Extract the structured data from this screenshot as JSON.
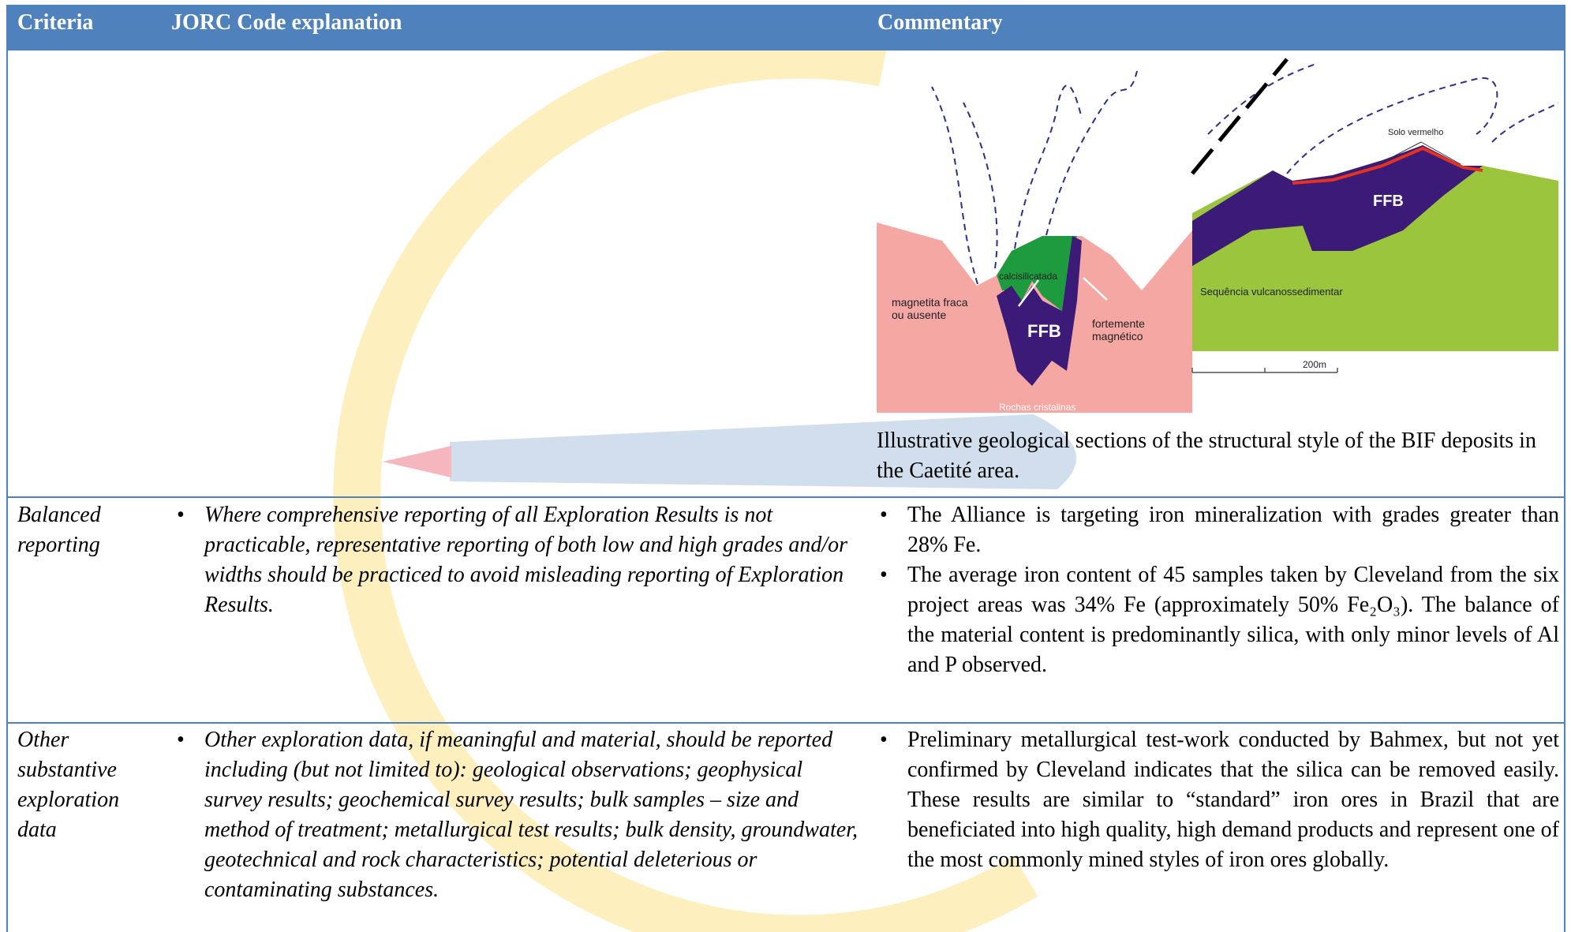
{
  "table": {
    "headers": [
      "Criteria",
      "JORC Code explanation",
      "Commentary"
    ],
    "figure": {
      "labels": [
        "calcisilicatada",
        "magnetita fraca ou ausente",
        "FFB",
        "fortemente magnético",
        "Rochas cristalinas",
        "Solo vermelho",
        "FFB",
        "Sequência vulcanossedimentar",
        "200m"
      ],
      "caption": "Illustrative geological sections of the structural style of the BIF deposits in the Caetité area."
    },
    "rows": [
      {
        "criteria": "Balanced reporting",
        "explanation": [
          "Where comprehensive reporting of all Exploration Results is not practicable, representative reporting of both low and high grades and/or widths should be practiced to avoid misleading reporting of Exploration Results."
        ],
        "commentary": [
          "The Alliance is targeting iron mineralization with grades greater than 28% Fe.",
          "The average iron content of 45 samples taken by Cleveland from the six project areas was 34% Fe (approximately 50% Fe₂O₃). The balance of the material content is predominantly silica, with only minor levels of Al and P observed."
        ]
      },
      {
        "criteria": "Other substantive exploration data",
        "explanation": [
          "Other exploration data, if meaningful and material, should be reported including (but not limited to): geological observations; geophysical survey results; geochemical survey results; bulk samples – size and method of treatment; metallurgical test results; bulk density, groundwater, geotechnical and rock characteristics; potential deleterious or contaminating substances."
        ],
        "commentary": [
          "Preliminary metallurgical test-work conducted by Bahmex, but not yet confirmed by Cleveland indicates that the silica can be removed easily. These results are similar to “standard” iron ores in Brazil that are beneficiated into high quality, high demand products and represent one of the most commonly mined styles of iron ores globally."
        ]
      }
    ]
  }
}
